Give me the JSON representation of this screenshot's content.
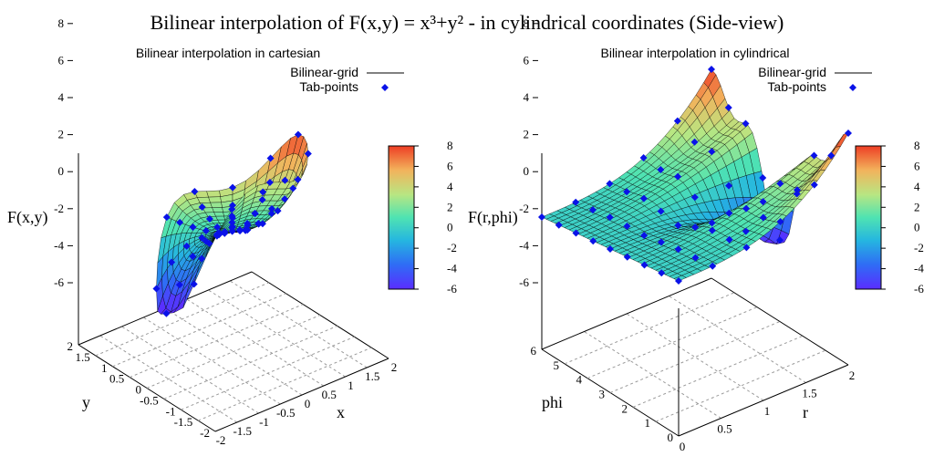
{
  "title": "Bilinear interpolation of F(x,y) = x³+y² - in cylindrical coordinates (Side-view)",
  "colors": {
    "palette": [
      "#5a2dff",
      "#2f6cf5",
      "#25b6e0",
      "#4fe3b2",
      "#b8e682",
      "#f2b35c",
      "#ee3d24"
    ],
    "points": "#0a12e8",
    "grid_line": "#000000"
  },
  "chart_data": [
    {
      "type": "surface",
      "subtitle": "Bilinear interpolation in cartesian",
      "zlabel": "F(x,y)",
      "xlabel": "x",
      "ylabel": "y",
      "legend": [
        {
          "label": "Bilinear-grid",
          "style": "line"
        },
        {
          "label": "Tab-points",
          "style": "point"
        }
      ],
      "legend_position": "top-right",
      "xticks": [
        "-2",
        "-1.5",
        "-1",
        "-0.5",
        "0",
        "0.5",
        "1",
        "1.5",
        "2"
      ],
      "yticks": [
        "-2",
        "-1.5",
        "-1",
        "-0.5",
        "0",
        "0.5",
        "1",
        "1.5",
        "2"
      ],
      "zticks": [
        "-6",
        "-4",
        "-2",
        "0",
        "2",
        "4",
        "6",
        "8"
      ],
      "colorbar_ticks": [
        "-6",
        "-4",
        "-2",
        "0",
        "2",
        "4",
        "6",
        "8"
      ],
      "xlim": [
        -2,
        2
      ],
      "ylim": [
        -2,
        2
      ],
      "zlim": [
        -6,
        8
      ],
      "grid": true
    },
    {
      "type": "surface",
      "subtitle": "Bilinear interpolation in cylindrical",
      "zlabel": "F(r,phi)",
      "xlabel": "r",
      "ylabel": "phi",
      "legend": [
        {
          "label": "Bilinear-grid",
          "style": "line"
        },
        {
          "label": "Tab-points",
          "style": "point"
        }
      ],
      "legend_position": "top-right",
      "xticks": [
        "0",
        "0.5",
        "1",
        "1.5",
        "2"
      ],
      "yticks": [
        "0",
        "1",
        "2",
        "3",
        "4",
        "5",
        "6"
      ],
      "zticks": [
        "-6",
        "-4",
        "-2",
        "0",
        "2",
        "4",
        "6",
        "8"
      ],
      "colorbar_ticks": [
        "-6",
        "-4",
        "-2",
        "0",
        "2",
        "4",
        "6",
        "8"
      ],
      "xlim": [
        0,
        2
      ],
      "ylim": [
        0,
        6.283
      ],
      "zlim": [
        -6,
        8
      ],
      "grid": true
    }
  ]
}
